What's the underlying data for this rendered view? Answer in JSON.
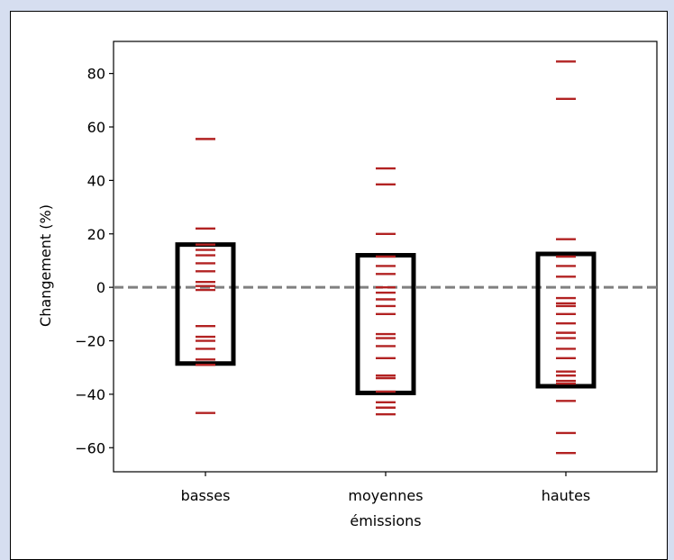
{
  "chart_data": {
    "type": "scatter",
    "title": "",
    "xlabel": "émissions",
    "ylabel": "Changement (%)",
    "categories": [
      "basses",
      "moyennes",
      "hautes"
    ],
    "ylim": [
      -69,
      92
    ],
    "yticks": [
      80,
      60,
      40,
      20,
      0,
      -20,
      -40,
      -60
    ],
    "ytick_labels": [
      "80",
      "60",
      "40",
      "20",
      "0",
      "−20",
      "−40",
      "−60"
    ],
    "reference_line": {
      "y": 0,
      "style": "dashed",
      "color": "#808080"
    },
    "marker_color": "#b22222",
    "box_color": "#000000",
    "series": [
      {
        "category": "basses",
        "values": [
          55.5,
          22,
          16,
          14,
          12,
          9,
          6,
          2,
          0.5,
          -1,
          -14.5,
          -18.5,
          -20,
          -23,
          -27,
          -29,
          -47
        ],
        "box": {
          "low": -28.5,
          "high": 16
        }
      },
      {
        "category": "moyennes",
        "values": [
          44.5,
          38.5,
          20,
          11.5,
          8,
          5,
          0,
          -2,
          -4.5,
          -7,
          -10,
          -17.5,
          -19,
          -22,
          -26.5,
          -33,
          -34,
          -39,
          -43,
          -45,
          -47.5
        ],
        "box": {
          "low": -39.5,
          "high": 12
        }
      },
      {
        "category": "hautes",
        "values": [
          84.5,
          70.5,
          18,
          11.5,
          8,
          4,
          -4,
          -6,
          -7,
          -10,
          -13.5,
          -17,
          -19,
          -23,
          -26.5,
          -31.5,
          -33,
          -35,
          -36,
          -42.5,
          -54.5,
          -62
        ],
        "box": {
          "low": -37,
          "high": 12.5
        }
      }
    ]
  }
}
